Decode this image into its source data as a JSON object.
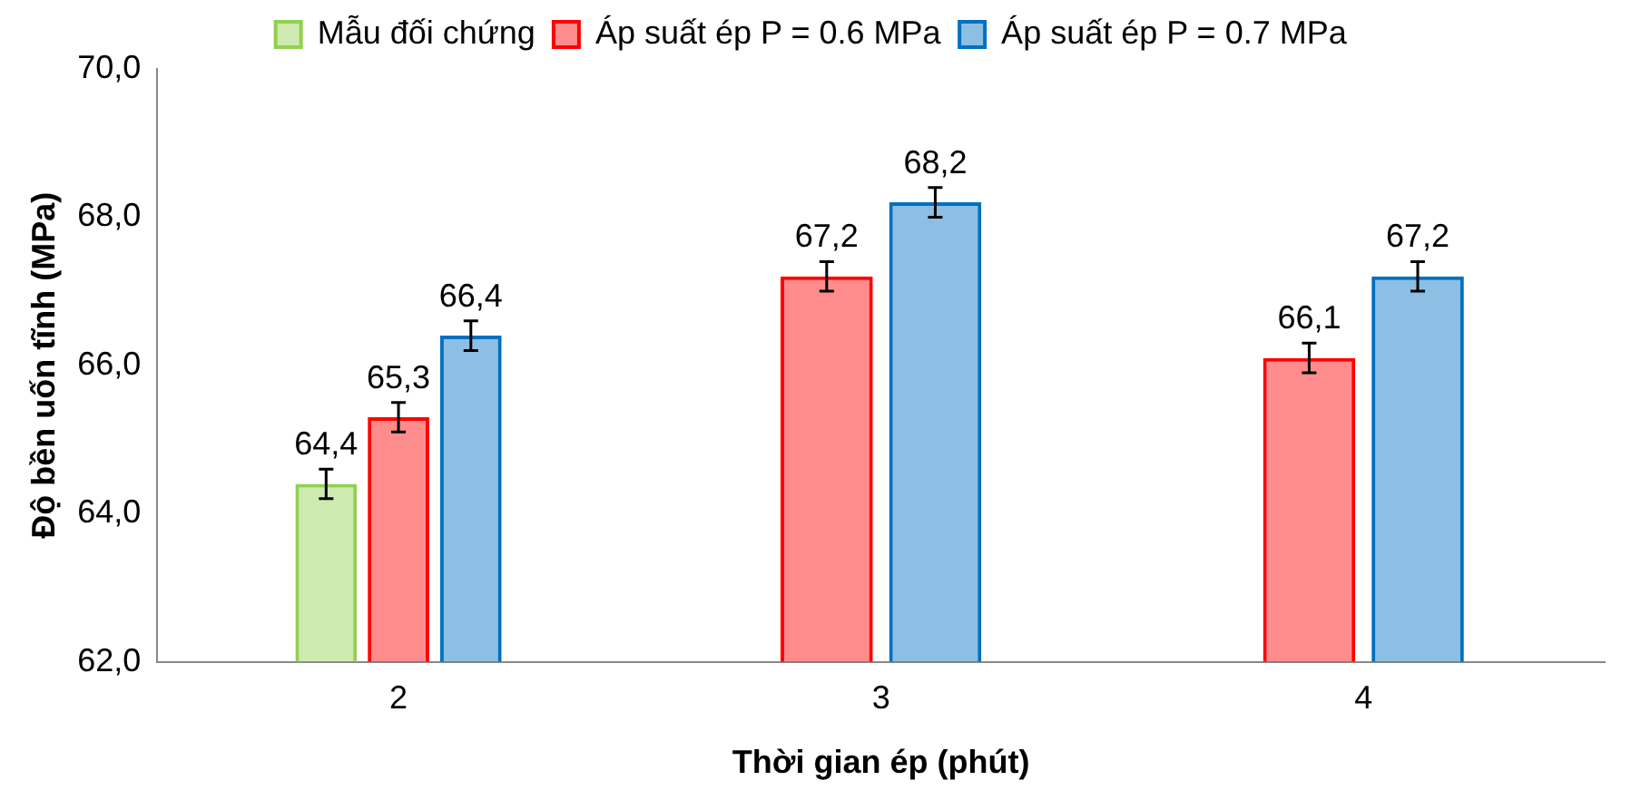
{
  "chart_data": {
    "type": "bar",
    "xlabel": "Thời gian ép (phút)",
    "ylabel": "Độ bền uốn tĩnh (MPa)",
    "categories": [
      "2",
      "3",
      "4"
    ],
    "series": [
      {
        "name": "Mẫu đối chứng",
        "color": "#92d050",
        "values": [
          64.4,
          null,
          null
        ],
        "errors": [
          0.2,
          null,
          null
        ],
        "value_labels": [
          "64,4",
          null,
          null
        ]
      },
      {
        "name": "Áp suất ép P = 0.6 MPa",
        "color": "#ff0000",
        "values": [
          65.3,
          67.2,
          66.1
        ],
        "errors": [
          0.2,
          0.2,
          0.2
        ],
        "value_labels": [
          "65,3",
          "67,2",
          "66,1"
        ]
      },
      {
        "name": "Áp suất ép P = 0.7 MPa",
        "color": "#0070c0",
        "values": [
          66.4,
          68.2,
          67.2
        ],
        "errors": [
          0.2,
          0.2,
          0.2
        ],
        "value_labels": [
          "66,4",
          "68,2",
          "67,2"
        ]
      }
    ],
    "ylim": [
      62,
      70
    ],
    "yticks": [
      {
        "value": 62,
        "label": "62,0"
      },
      {
        "value": 64,
        "label": "64,0"
      },
      {
        "value": 66,
        "label": "66,0"
      },
      {
        "value": 68,
        "label": "68,0"
      },
      {
        "value": 70,
        "label": "70,0"
      }
    ],
    "grid": false,
    "legend": "top"
  }
}
